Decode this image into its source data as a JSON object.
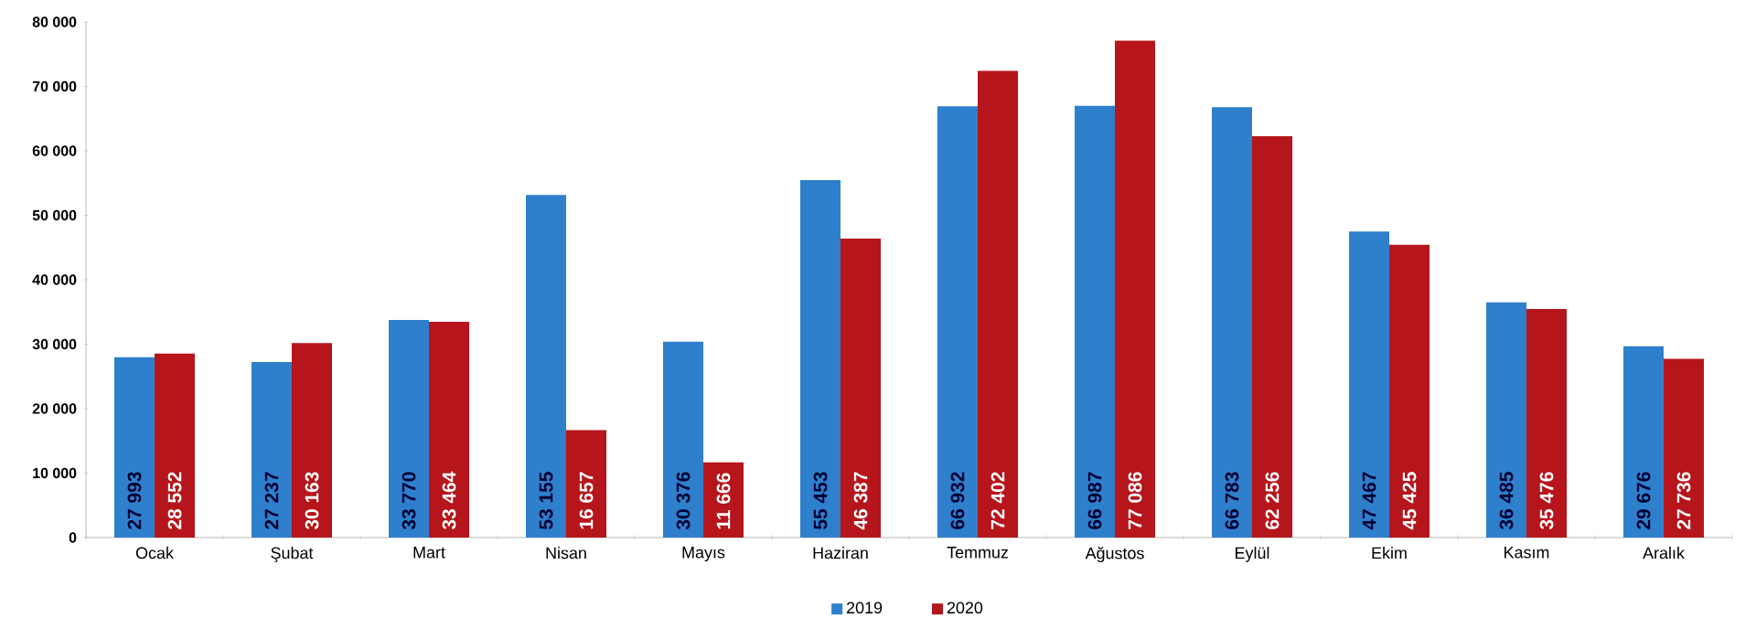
{
  "chart_data": {
    "type": "bar",
    "categories": [
      "Ocak",
      "Şubat",
      "Mart",
      "Nisan",
      "Mayıs",
      "Haziran",
      "Temmuz",
      "Ağustos",
      "Eylül",
      "Ekim",
      "Kasım",
      "Aralık"
    ],
    "series": [
      {
        "name": "2019",
        "color": "#2e7fcc",
        "values": [
          27993,
          27237,
          33770,
          53155,
          30376,
          55453,
          66932,
          66987,
          66783,
          47467,
          36485,
          29676
        ],
        "value_labels": [
          "27 993",
          "27 237",
          "33 770",
          "53 155",
          "30 376",
          "55 453",
          "66 932",
          "66 987",
          "66 783",
          "47 467",
          "36 485",
          "29 676"
        ]
      },
      {
        "name": "2020",
        "color": "#b5151b",
        "values": [
          28552,
          30163,
          33464,
          16657,
          11666,
          46387,
          72402,
          77086,
          62256,
          45425,
          35476,
          27736
        ],
        "value_labels": [
          "28 552",
          "30 163",
          "33 464",
          "16 657",
          "11 666",
          "46 387",
          "72 402",
          "77 086",
          "62 256",
          "45 425",
          "35 476",
          "27 736"
        ]
      }
    ],
    "ylim": [
      0,
      80000
    ],
    "yticks": [
      0,
      {
        "value": 10000,
        "label": "10 000"
      },
      {
        "value": 20000,
        "label": "20 000"
      },
      {
        "value": 30000,
        "label": "30 000"
      },
      {
        "value": 40000,
        "label": "40 000"
      },
      {
        "value": 50000,
        "label": "50 000"
      },
      {
        "value": 60000,
        "label": "60 000"
      },
      {
        "value": 70000,
        "label": "70 000"
      },
      {
        "value": 80000,
        "label": "80 000"
      }
    ],
    "grid": false,
    "legend": "bottom"
  }
}
